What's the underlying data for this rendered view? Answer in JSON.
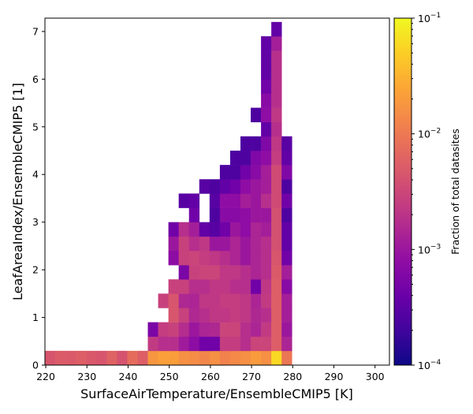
{
  "chart_data": {
    "type": "heatmap",
    "title": "",
    "xlabel": "SurfaceAirTemperature/EnsembleCMIP5 [K]",
    "ylabel": "LeafAreaIndex/EnsembleCMIP5 [1]",
    "xlim": [
      219.8,
      303.5
    ],
    "ylim": [
      0,
      7.28
    ],
    "x_bin_width": 2.5,
    "y_bin_width": 0.3,
    "x_bin_start": 219.8,
    "x_ticks": [
      "220",
      "230",
      "240",
      "250",
      "260",
      "270",
      "280",
      "290",
      "300"
    ],
    "x_tick_values": [
      220,
      230,
      240,
      250,
      260,
      270,
      280,
      290,
      300
    ],
    "y_ticks": [
      "0",
      "1",
      "2",
      "3",
      "4",
      "5",
      "6",
      "7"
    ],
    "y_tick_values": [
      0,
      1,
      2,
      3,
      4,
      5,
      6,
      7
    ],
    "colormap": "plasma",
    "color_scale": "log",
    "colorbar": {
      "label": "Fraction of total datasites",
      "vmin": 0.0001,
      "vmax": 0.1,
      "ticks": [
        {
          "base": "10",
          "exp": "−4"
        },
        {
          "base": "10",
          "exp": "−3"
        },
        {
          "base": "10",
          "exp": "−2"
        },
        {
          "base": "10",
          "exp": "−1"
        }
      ]
    },
    "cells": [
      [
        0,
        0,
        0.0044
      ],
      [
        1,
        0,
        0.0052
      ],
      [
        2,
        0,
        0.005
      ],
      [
        3,
        0,
        0.0055
      ],
      [
        4,
        0,
        0.0048
      ],
      [
        5,
        0,
        0.0045
      ],
      [
        6,
        0,
        0.006
      ],
      [
        7,
        0,
        0.0042
      ],
      [
        8,
        0,
        0.0075
      ],
      [
        9,
        0,
        0.0055
      ],
      [
        10,
        0,
        0.018
      ],
      [
        11,
        0,
        0.022
      ],
      [
        12,
        0,
        0.021
      ],
      [
        13,
        0,
        0.016
      ],
      [
        14,
        0,
        0.015
      ],
      [
        15,
        0,
        0.013
      ],
      [
        16,
        0,
        0.016
      ],
      [
        17,
        0,
        0.012
      ],
      [
        18,
        0,
        0.014
      ],
      [
        19,
        0,
        0.016
      ],
      [
        20,
        0,
        0.02
      ],
      [
        21,
        0,
        0.016
      ],
      [
        22,
        0,
        0.06
      ],
      [
        23,
        0,
        0.0095
      ],
      [
        10,
        1,
        0.0024
      ],
      [
        11,
        1,
        0.0018
      ],
      [
        12,
        1,
        0.0018
      ],
      [
        13,
        1,
        0.0011
      ],
      [
        14,
        1,
        0.00075
      ],
      [
        15,
        1,
        0.00045
      ],
      [
        16,
        1,
        0.00045
      ],
      [
        17,
        1,
        0.0025
      ],
      [
        18,
        1,
        0.0025
      ],
      [
        19,
        1,
        0.0018
      ],
      [
        20,
        1,
        0.003
      ],
      [
        21,
        1,
        0.003
      ],
      [
        22,
        1,
        0.0055
      ],
      [
        23,
        1,
        0.0014
      ],
      [
        10,
        2,
        0.00055
      ],
      [
        11,
        2,
        0.0025
      ],
      [
        12,
        2,
        0.0028
      ],
      [
        13,
        2,
        0.0017
      ],
      [
        14,
        2,
        0.001
      ],
      [
        15,
        2,
        0.0014
      ],
      [
        16,
        2,
        0.0015
      ],
      [
        17,
        2,
        0.003
      ],
      [
        18,
        2,
        0.003
      ],
      [
        19,
        2,
        0.0018
      ],
      [
        20,
        2,
        0.0014
      ],
      [
        21,
        2,
        0.0024
      ],
      [
        22,
        2,
        0.0055
      ],
      [
        23,
        2,
        0.001
      ],
      [
        12,
        3,
        0.0045
      ],
      [
        13,
        3,
        0.0028
      ],
      [
        14,
        3,
        0.0015
      ],
      [
        15,
        3,
        0.0018
      ],
      [
        16,
        3,
        0.0022
      ],
      [
        17,
        3,
        0.0022
      ],
      [
        18,
        3,
        0.0025
      ],
      [
        19,
        3,
        0.0022
      ],
      [
        20,
        3,
        0.0015
      ],
      [
        21,
        3,
        0.0018
      ],
      [
        22,
        3,
        0.0055
      ],
      [
        23,
        3,
        0.0012
      ],
      [
        11,
        4,
        0.0028
      ],
      [
        12,
        4,
        0.0045
      ],
      [
        13,
        4,
        0.0015
      ],
      [
        14,
        4,
        0.0014
      ],
      [
        15,
        4,
        0.0022
      ],
      [
        16,
        4,
        0.0022
      ],
      [
        17,
        4,
        0.0025
      ],
      [
        18,
        4,
        0.0025
      ],
      [
        19,
        4,
        0.0022
      ],
      [
        20,
        4,
        0.0014
      ],
      [
        21,
        4,
        0.0024
      ],
      [
        22,
        4,
        0.0055
      ],
      [
        23,
        4,
        0.0012
      ],
      [
        12,
        5,
        0.0028
      ],
      [
        13,
        5,
        0.0028
      ],
      [
        14,
        5,
        0.0018
      ],
      [
        15,
        5,
        0.0018
      ],
      [
        16,
        5,
        0.0022
      ],
      [
        17,
        5,
        0.0022
      ],
      [
        18,
        5,
        0.0018
      ],
      [
        19,
        5,
        0.0018
      ],
      [
        20,
        5,
        0.00045
      ],
      [
        21,
        5,
        0.0022
      ],
      [
        22,
        5,
        0.0055
      ],
      [
        23,
        5,
        0.0007
      ],
      [
        13,
        6,
        0.00055
      ],
      [
        14,
        6,
        0.0028
      ],
      [
        15,
        6,
        0.003
      ],
      [
        16,
        6,
        0.003
      ],
      [
        17,
        6,
        0.0022
      ],
      [
        18,
        6,
        0.0022
      ],
      [
        19,
        6,
        0.0018
      ],
      [
        20,
        6,
        0.0014
      ],
      [
        21,
        6,
        0.0018
      ],
      [
        22,
        6,
        0.005
      ],
      [
        23,
        6,
        0.0012
      ],
      [
        12,
        7,
        0.00075
      ],
      [
        13,
        7,
        0.0028
      ],
      [
        14,
        7,
        0.003
      ],
      [
        15,
        7,
        0.0025
      ],
      [
        16,
        7,
        0.0022
      ],
      [
        17,
        7,
        0.0018
      ],
      [
        18,
        7,
        0.0014
      ],
      [
        19,
        7,
        0.001
      ],
      [
        20,
        7,
        0.0014
      ],
      [
        21,
        7,
        0.0018
      ],
      [
        22,
        7,
        0.0045
      ],
      [
        23,
        7,
        0.00045
      ],
      [
        12,
        8,
        0.001
      ],
      [
        13,
        8,
        0.0028
      ],
      [
        14,
        8,
        0.0018
      ],
      [
        15,
        8,
        0.0022
      ],
      [
        16,
        8,
        0.001
      ],
      [
        17,
        8,
        0.001
      ],
      [
        18,
        8,
        0.0014
      ],
      [
        19,
        8,
        0.001
      ],
      [
        20,
        8,
        0.0014
      ],
      [
        21,
        8,
        0.0018
      ],
      [
        22,
        8,
        0.004
      ],
      [
        23,
        8,
        0.00035
      ],
      [
        12,
        9,
        0.00045
      ],
      [
        13,
        9,
        0.0018
      ],
      [
        14,
        9,
        0.0012
      ],
      [
        15,
        9,
        0.00035
      ],
      [
        16,
        9,
        0.0003
      ],
      [
        17,
        9,
        0.00045
      ],
      [
        18,
        9,
        0.001
      ],
      [
        19,
        9,
        0.0008
      ],
      [
        20,
        9,
        0.0014
      ],
      [
        21,
        9,
        0.0012
      ],
      [
        22,
        9,
        0.004
      ],
      [
        23,
        9,
        0.00035
      ],
      [
        14,
        10,
        0.00045
      ],
      [
        16,
        10,
        0.00025
      ],
      [
        17,
        10,
        0.0007
      ],
      [
        18,
        10,
        0.0007
      ],
      [
        19,
        10,
        0.0008
      ],
      [
        20,
        10,
        0.001
      ],
      [
        21,
        10,
        0.001
      ],
      [
        22,
        10,
        0.004
      ],
      [
        23,
        10,
        0.00025
      ],
      [
        13,
        11,
        0.0003
      ],
      [
        14,
        11,
        0.00035
      ],
      [
        16,
        11,
        0.0003
      ],
      [
        17,
        11,
        0.0008
      ],
      [
        18,
        11,
        0.0008
      ],
      [
        19,
        11,
        0.0012
      ],
      [
        20,
        11,
        0.001
      ],
      [
        21,
        11,
        0.0018
      ],
      [
        22,
        11,
        0.0035
      ],
      [
        23,
        11,
        0.00045
      ],
      [
        15,
        12,
        0.0003
      ],
      [
        16,
        12,
        0.00025
      ],
      [
        17,
        12,
        0.00035
      ],
      [
        18,
        12,
        0.00045
      ],
      [
        19,
        12,
        0.0008
      ],
      [
        20,
        12,
        0.001
      ],
      [
        21,
        12,
        0.0012
      ],
      [
        22,
        12,
        0.0035
      ],
      [
        23,
        12,
        0.00025
      ],
      [
        17,
        13,
        0.00025
      ],
      [
        18,
        13,
        0.00025
      ],
      [
        19,
        13,
        0.00045
      ],
      [
        20,
        13,
        0.0007
      ],
      [
        21,
        13,
        0.0012
      ],
      [
        22,
        13,
        0.0035
      ],
      [
        23,
        13,
        0.0006
      ],
      [
        18,
        14,
        0.00025
      ],
      [
        19,
        14,
        0.00025
      ],
      [
        20,
        14,
        0.0006
      ],
      [
        21,
        14,
        0.0008
      ],
      [
        22,
        14,
        0.0025
      ],
      [
        23,
        14,
        0.00035
      ],
      [
        19,
        15,
        0.00025
      ],
      [
        20,
        15,
        0.00025
      ],
      [
        21,
        15,
        0.0006
      ],
      [
        22,
        15,
        0.0022
      ],
      [
        23,
        15,
        0.0003
      ],
      [
        21,
        16,
        0.00035
      ],
      [
        22,
        16,
        0.0018
      ],
      [
        20,
        17,
        0.00025
      ],
      [
        21,
        17,
        0.0008
      ],
      [
        22,
        17,
        0.0022
      ],
      [
        21,
        18,
        0.0007
      ],
      [
        22,
        18,
        0.0018
      ],
      [
        21,
        19,
        0.00045
      ],
      [
        22,
        19,
        0.0018
      ],
      [
        21,
        20,
        0.00035
      ],
      [
        22,
        20,
        0.0018
      ],
      [
        21,
        21,
        0.00035
      ],
      [
        22,
        21,
        0.0018
      ],
      [
        21,
        22,
        0.00035
      ],
      [
        22,
        22,
        0.0012
      ],
      [
        22,
        23,
        0.00035
      ]
    ]
  }
}
